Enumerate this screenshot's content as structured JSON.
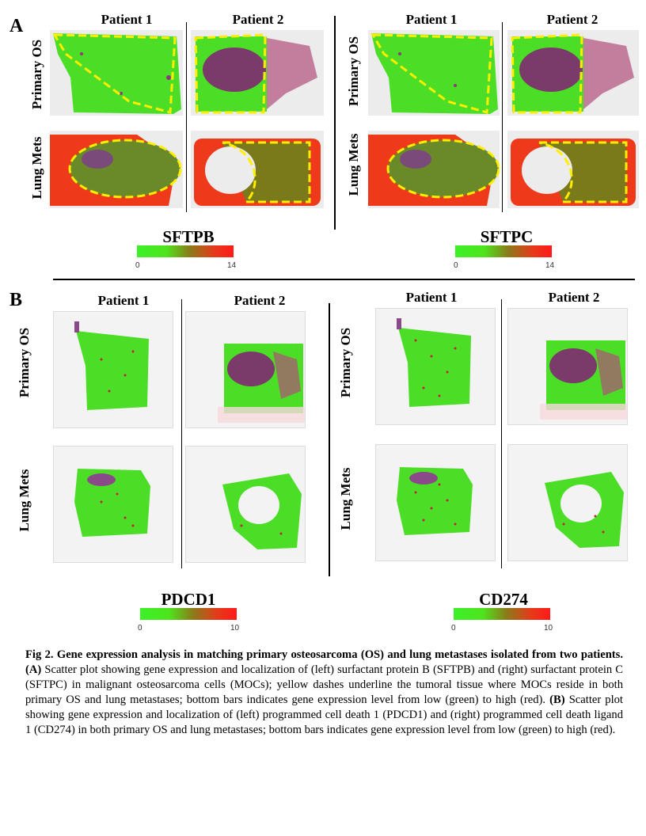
{
  "panelA": {
    "letter": "A",
    "groups": [
      {
        "cols": [
          "Patient 1",
          "Patient 2"
        ],
        "rows": [
          "Primary OS",
          "Lung Mets"
        ],
        "gene": "SFTPB",
        "scale": [
          "0",
          "14"
        ]
      },
      {
        "cols": [
          "Patient 1",
          "Patient 2"
        ],
        "rows": [
          "Primary OS",
          "Lung Mets"
        ],
        "gene": "SFTPC",
        "scale": [
          "0",
          "14"
        ]
      }
    ]
  },
  "panelB": {
    "letter": "B",
    "groups": [
      {
        "cols": [
          "Patient 1",
          "Patient 2"
        ],
        "rows": [
          "Primary OS",
          "Lung Mets"
        ],
        "gene": "PDCD1",
        "scale": [
          "0",
          "10"
        ]
      },
      {
        "cols": [
          "Patient 1",
          "Patient 2"
        ],
        "rows": [
          "Primary OS",
          "Lung Mets"
        ],
        "gene": "CD274",
        "scale": [
          "0",
          "10"
        ]
      }
    ]
  },
  "caption": {
    "fig_label": "Fig 2. Gene expression analysis in matching primary osteosarcoma (OS) and lung metastases isolated from two patients.",
    "a_label": "(A)",
    "a_text": "Scatter plot showing gene expression and localization of (left) surfactant protein B (SFTPB) and (right) surfactant protein C (SFTPC) in malignant osteosarcoma cells (MOCs); yellow dashes underline the tumoral tissue where MOCs reside in both primary OS and lung metastases; bottom bars indicates gene expression level from low (green) to high (red).",
    "b_label": "(B)",
    "b_text": "Scatter plot showing gene expression and localization of (left) programmed cell death 1 (PDCD1) and (right) programmed cell death ligand 1 (CD274) in both primary OS and lung metastases; bottom bars indicates gene expression level from low (green) to high (red)."
  },
  "colors": {
    "low": "#3cf028",
    "high": "#ff1a1a",
    "outline": "#ffee00",
    "purple": "#7a3a6a"
  }
}
